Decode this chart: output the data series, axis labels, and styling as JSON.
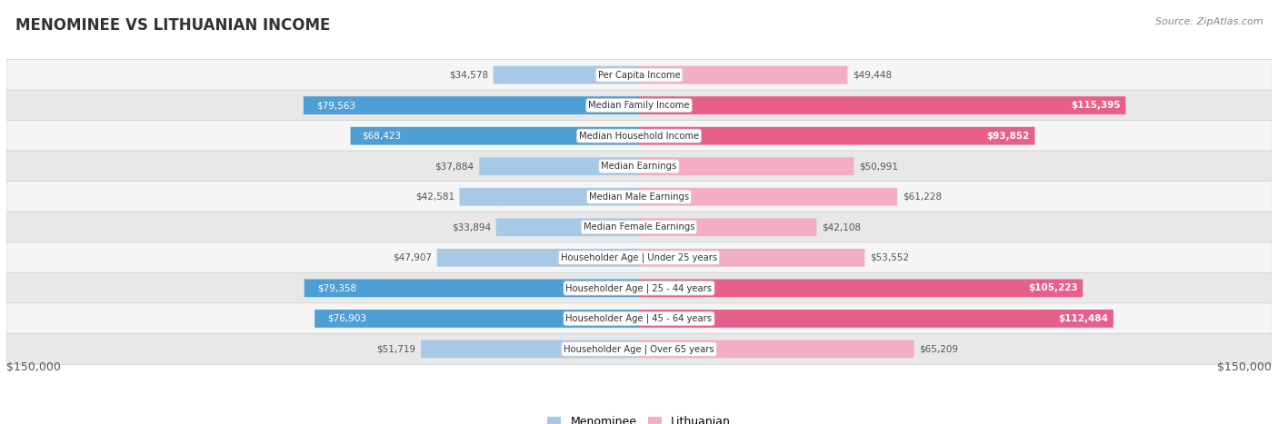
{
  "title": "MENOMINEE VS LITHUANIAN INCOME",
  "source": "Source: ZipAtlas.com",
  "categories": [
    "Per Capita Income",
    "Median Family Income",
    "Median Household Income",
    "Median Earnings",
    "Median Male Earnings",
    "Median Female Earnings",
    "Householder Age | Under 25 years",
    "Householder Age | 25 - 44 years",
    "Householder Age | 45 - 64 years",
    "Householder Age | Over 65 years"
  ],
  "menominee_values": [
    34578,
    79563,
    68423,
    37884,
    42581,
    33894,
    47907,
    79358,
    76903,
    51719
  ],
  "lithuanian_values": [
    49448,
    115395,
    93852,
    50991,
    61228,
    42108,
    53552,
    105223,
    112484,
    65209
  ],
  "max_value": 150000,
  "menominee_color_strong": "#4d9fd6",
  "menominee_color_light": "#a8c8e8",
  "lithuanian_color_strong": "#e8608a",
  "lithuanian_color_light": "#f4aec4",
  "bar_height": 0.58,
  "bg_color": "#ffffff",
  "row_bg_light": "#f5f5f5",
  "row_bg_dark": "#e8e8e8",
  "label_bg": "#ffffff",
  "legend_menominee": "Menominee",
  "legend_lithuanian": "Lithuanian",
  "xlabel_left": "$150,000",
  "xlabel_right": "$150,000",
  "strong_threshold_men": 65000,
  "strong_threshold_lit": 80000,
  "inside_text_threshold_men": 65000,
  "inside_text_threshold_lit": 80000
}
